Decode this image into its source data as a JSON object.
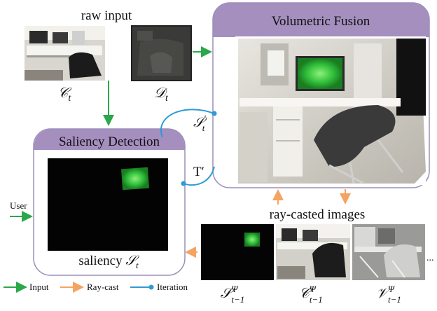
{
  "raw_input": {
    "title": "raw input",
    "color_label": "𝒞",
    "color_sub": "t",
    "depth_label": "𝒟",
    "depth_sub": "t"
  },
  "volumetric": {
    "title": "Volumetric Fusion"
  },
  "saliency_box": {
    "title": "Saliency Detection",
    "caption": "saliency ",
    "caption_sym": "𝒮",
    "caption_sub": "t"
  },
  "edges": {
    "s_prime": "𝒮",
    "s_prime_sup": "′",
    "s_prime_sub": "t",
    "t_prime": "T′",
    "user": "User"
  },
  "raycast": {
    "title": "ray-casted images",
    "ellipsis": "...",
    "labels": [
      {
        "sym": "𝒮",
        "sup": "Ψ",
        "sub": "t−1"
      },
      {
        "sym": "𝒞",
        "sup": "Ψ",
        "sub": "t−1"
      },
      {
        "sym": "𝒱",
        "sup": "Ψ",
        "sub": "t−1"
      }
    ]
  },
  "legend": {
    "input": "Input",
    "raycast": "Ray-cast",
    "iteration": "Iteration"
  },
  "colors": {
    "input_arrow": "#2aa84a",
    "raycast_arrow": "#f4a460",
    "iteration_arrow": "#2e9bd6",
    "box_header": "#a58fbf",
    "box_border": "#9a8fb8"
  }
}
